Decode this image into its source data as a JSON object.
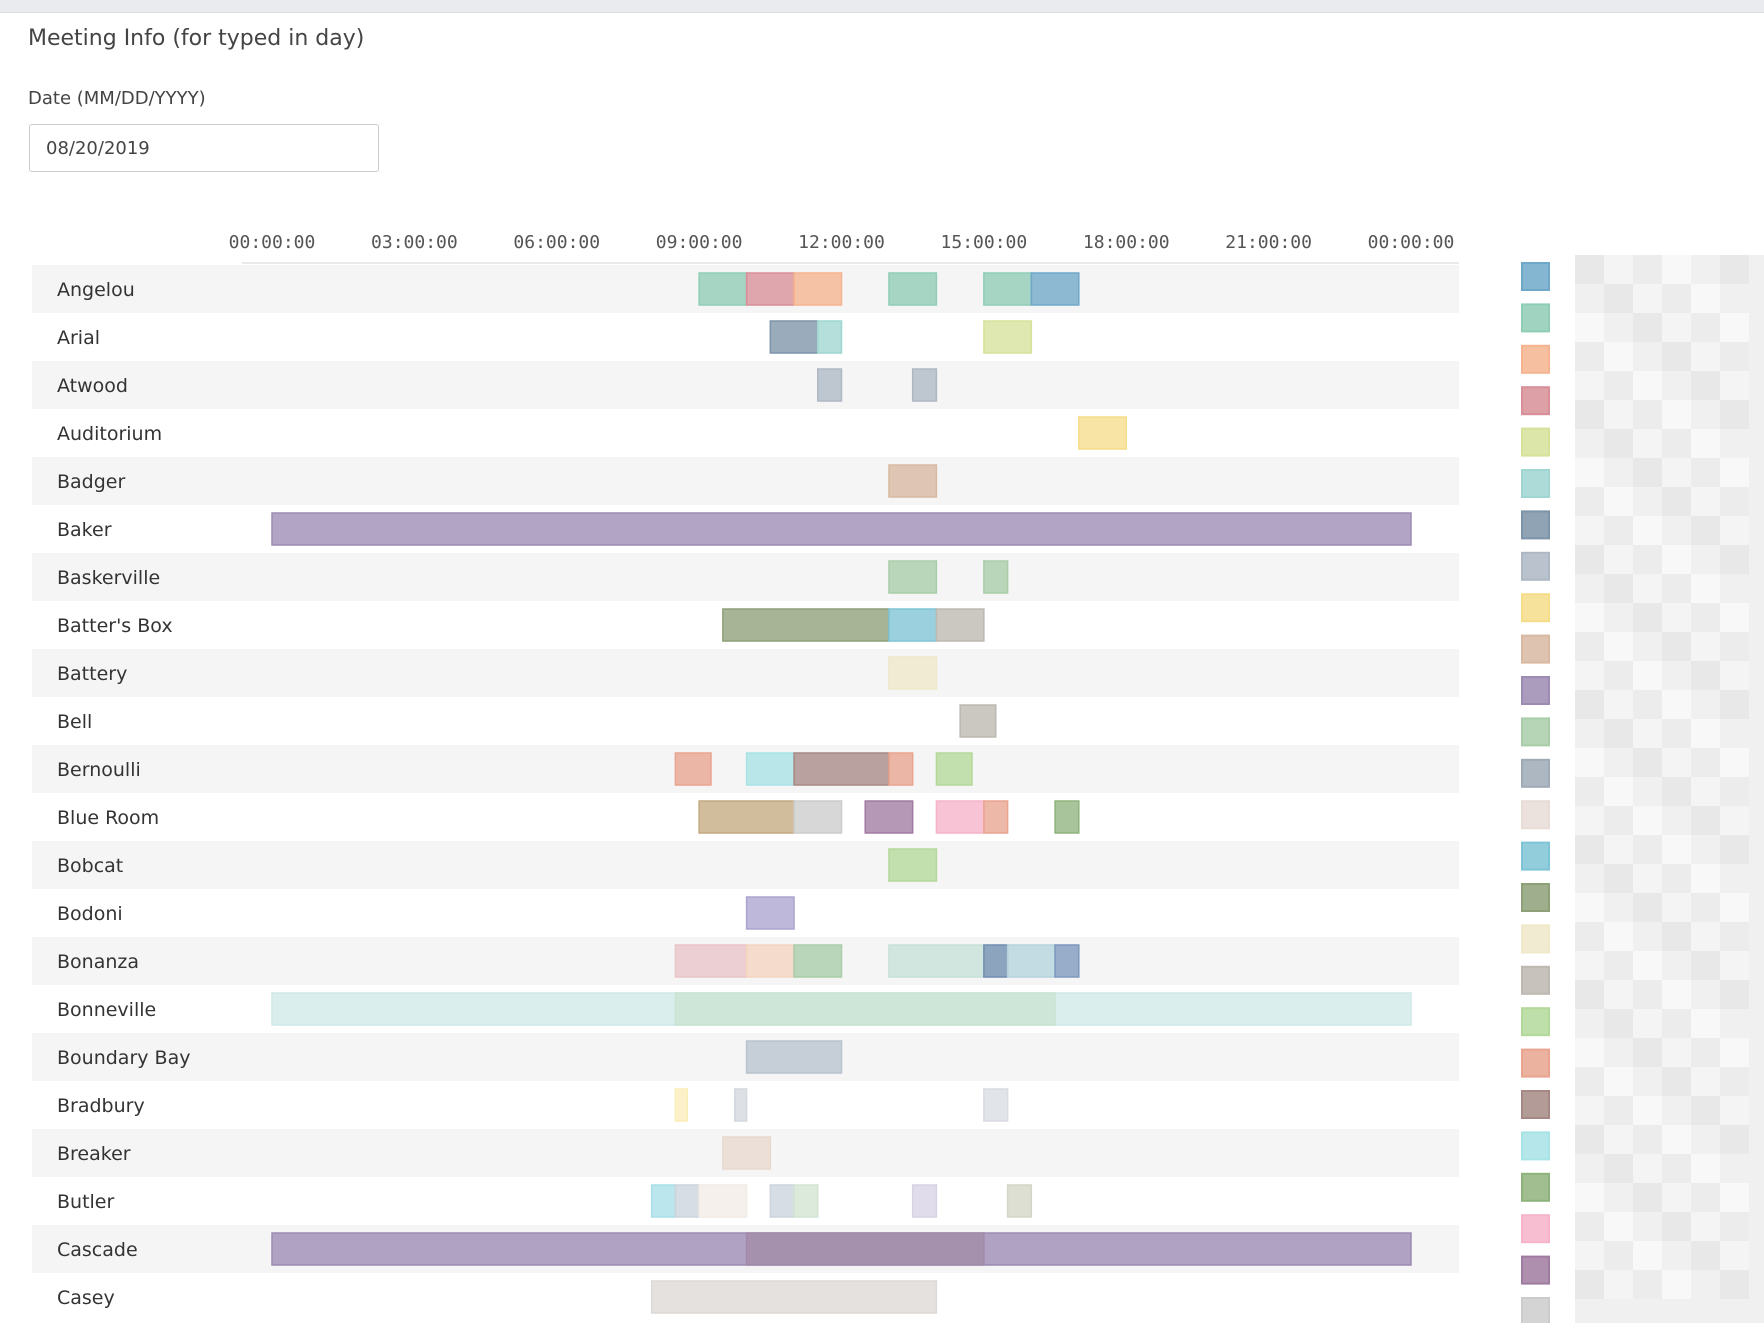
{
  "page": {
    "title": "Meeting Info (for typed in day)",
    "date_label": "Date (MM/DD/YYYY)",
    "date_value": "08/20/2019"
  },
  "chart_data": {
    "type": "gantt",
    "title": "",
    "x_unit": "hours",
    "x_range": [
      0,
      24
    ],
    "x_ticks": [
      {
        "value": 0,
        "label": "00:00:00"
      },
      {
        "value": 3,
        "label": "03:00:00"
      },
      {
        "value": 6,
        "label": "06:00:00"
      },
      {
        "value": 9,
        "label": "09:00:00"
      },
      {
        "value": 12,
        "label": "12:00:00"
      },
      {
        "value": 15,
        "label": "15:00:00"
      },
      {
        "value": 18,
        "label": "18:00:00"
      },
      {
        "value": 21,
        "label": "21:00:00"
      },
      {
        "value": 24,
        "label": "00:00:00"
      }
    ],
    "legend_position": "right",
    "legend_colors": [
      "#6fa8c9",
      "#8fcdb5",
      "#f5b48f",
      "#d88f98",
      "#d6e29a",
      "#9fd6d1",
      "#7d93a8",
      "#aeb8c4",
      "#f6dd8a",
      "#d8b9a2",
      "#9c8bb3",
      "#a9cda9",
      "#9eaab6",
      "#e8dcd7",
      "#7fc4d6",
      "#8ea078",
      "#efe8c9",
      "#bdb8b0",
      "#b3d99a",
      "#e9a48f",
      "#a68985",
      "#a8e3e6",
      "#8fb37d",
      "#f6b3c9",
      "#a07ba0",
      "#cccccc"
    ],
    "rows": [
      {
        "name": "Angelou",
        "bars": [
          {
            "start": 9.0,
            "end": 10.0,
            "color": "#8fcdb5"
          },
          {
            "start": 10.0,
            "end": 11.0,
            "color": "#d88f98"
          },
          {
            "start": 11.0,
            "end": 12.0,
            "color": "#f5b48f"
          },
          {
            "start": 13.0,
            "end": 14.0,
            "color": "#8fcdb5"
          },
          {
            "start": 15.0,
            "end": 16.0,
            "color": "#8fcdb5"
          },
          {
            "start": 16.0,
            "end": 17.0,
            "color": "#6fa8c9"
          }
        ]
      },
      {
        "name": "Arial",
        "bars": [
          {
            "start": 10.5,
            "end": 11.5,
            "color": "#7d93a8"
          },
          {
            "start": 11.5,
            "end": 12.0,
            "color": "#9fd6d1"
          },
          {
            "start": 15.0,
            "end": 16.0,
            "color": "#d6e29a"
          }
        ]
      },
      {
        "name": "Atwood",
        "bars": [
          {
            "start": 11.5,
            "end": 12.0,
            "color": "#aeb8c4"
          },
          {
            "start": 13.5,
            "end": 14.0,
            "color": "#aeb8c4"
          }
        ]
      },
      {
        "name": "Auditorium",
        "bars": [
          {
            "start": 17.0,
            "end": 18.0,
            "color": "#f6dd8a"
          }
        ]
      },
      {
        "name": "Badger",
        "bars": [
          {
            "start": 13.0,
            "end": 14.0,
            "color": "#d8b9a2"
          }
        ]
      },
      {
        "name": "Baker",
        "bars": [
          {
            "start": 0.0,
            "end": 24.0,
            "color": "#9c8bb3"
          }
        ]
      },
      {
        "name": "Baskerville",
        "bars": [
          {
            "start": 13.0,
            "end": 14.0,
            "color": "#a9cda9"
          },
          {
            "start": 15.0,
            "end": 15.5,
            "color": "#a9cda9"
          }
        ]
      },
      {
        "name": "Batter's Box",
        "bars": [
          {
            "start": 9.5,
            "end": 13.0,
            "color": "#8ea078"
          },
          {
            "start": 13.0,
            "end": 14.0,
            "color": "#7fc4d6"
          },
          {
            "start": 14.0,
            "end": 15.0,
            "color": "#bdb8b0"
          }
        ]
      },
      {
        "name": "Battery",
        "bars": [
          {
            "start": 13.0,
            "end": 14.0,
            "color": "#efe8c9"
          }
        ]
      },
      {
        "name": "Bell",
        "bars": [
          {
            "start": 14.5,
            "end": 15.25,
            "color": "#bdb8b0"
          }
        ]
      },
      {
        "name": "Bernoulli",
        "bars": [
          {
            "start": 8.5,
            "end": 9.25,
            "color": "#e9a48f"
          },
          {
            "start": 10.0,
            "end": 11.0,
            "color": "#a8e3e6"
          },
          {
            "start": 11.0,
            "end": 13.0,
            "color": "#a68985"
          },
          {
            "start": 13.0,
            "end": 13.5,
            "color": "#e9a48f"
          },
          {
            "start": 14.0,
            "end": 14.75,
            "color": "#b3d99a"
          }
        ]
      },
      {
        "name": "Blue Room",
        "bars": [
          {
            "start": 9.0,
            "end": 11.0,
            "color": "#c4a97f"
          },
          {
            "start": 11.0,
            "end": 12.0,
            "color": "#cccccc"
          },
          {
            "start": 12.5,
            "end": 13.5,
            "color": "#a07ba0"
          },
          {
            "start": 14.0,
            "end": 15.0,
            "color": "#f6b3c9"
          },
          {
            "start": 15.0,
            "end": 15.5,
            "color": "#e9a48f"
          },
          {
            "start": 16.5,
            "end": 17.0,
            "color": "#8fb37d"
          }
        ]
      },
      {
        "name": "Bobcat",
        "bars": [
          {
            "start": 13.0,
            "end": 14.0,
            "color": "#b3d99a"
          }
        ]
      },
      {
        "name": "Bodoni",
        "bars": [
          {
            "start": 10.0,
            "end": 11.0,
            "color": "#aca5cf"
          }
        ]
      },
      {
        "name": "Bonanza",
        "bars": [
          {
            "start": 8.5,
            "end": 10.0,
            "color": "#e9c4c8"
          },
          {
            "start": 10.0,
            "end": 11.0,
            "color": "#f5d3c0"
          },
          {
            "start": 11.0,
            "end": 12.0,
            "color": "#a9cda9"
          },
          {
            "start": 13.0,
            "end": 15.0,
            "color": "#c7e2d8"
          },
          {
            "start": 15.0,
            "end": 15.5,
            "color": "#6f8db0"
          },
          {
            "start": 15.5,
            "end": 16.5,
            "color": "#b5d3de"
          },
          {
            "start": 16.5,
            "end": 17.0,
            "color": "#7d98bd"
          }
        ]
      },
      {
        "name": "Bonneville",
        "bars": [
          {
            "start": 0.0,
            "end": 24.0,
            "color": "#cfe9e9"
          },
          {
            "start": 8.5,
            "end": 16.5,
            "color": "#c9e4d2"
          }
        ]
      },
      {
        "name": "Boundary Bay",
        "bars": [
          {
            "start": 10.0,
            "end": 12.0,
            "color": "#b8c3cf"
          }
        ]
      },
      {
        "name": "Bradbury",
        "bars": [
          {
            "start": 8.5,
            "end": 8.75,
            "color": "#fbedb8"
          },
          {
            "start": 9.75,
            "end": 10.0,
            "color": "#d3d7de"
          },
          {
            "start": 15.0,
            "end": 15.5,
            "color": "#d8dce3"
          }
        ]
      },
      {
        "name": "Breaker",
        "bars": [
          {
            "start": 9.5,
            "end": 10.5,
            "color": "#e8d9ce"
          }
        ]
      },
      {
        "name": "Butler",
        "bars": [
          {
            "start": 8.0,
            "end": 8.5,
            "color": "#a8dfe8"
          },
          {
            "start": 8.5,
            "end": 9.0,
            "color": "#ccd3dc"
          },
          {
            "start": 9.0,
            "end": 10.0,
            "color": "#f2ece5"
          },
          {
            "start": 10.5,
            "end": 11.0,
            "color": "#ccd3dc"
          },
          {
            "start": 11.0,
            "end": 11.5,
            "color": "#d2e4d2"
          },
          {
            "start": 13.5,
            "end": 14.0,
            "color": "#d9d2e6"
          },
          {
            "start": 15.5,
            "end": 16.0,
            "color": "#d3d6c5"
          }
        ]
      },
      {
        "name": "Cascade",
        "bars": [
          {
            "start": 0.0,
            "end": 24.0,
            "color": "#9c8bb3"
          },
          {
            "start": 10.0,
            "end": 15.0,
            "color": "#a28aa8"
          }
        ]
      },
      {
        "name": "Casey",
        "bars": [
          {
            "start": 8.0,
            "end": 14.0,
            "color": "#ddd9d6"
          }
        ]
      }
    ]
  }
}
